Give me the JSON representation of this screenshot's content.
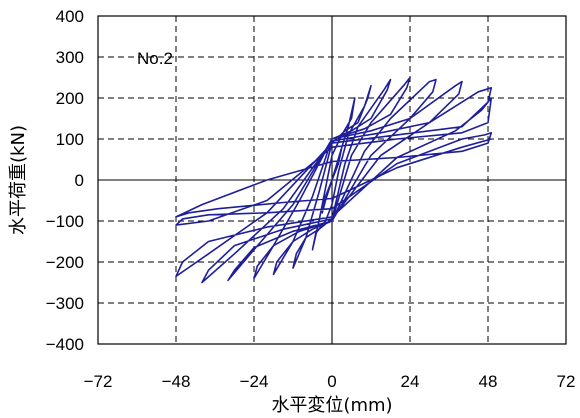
{
  "chart_data": {
    "type": "line",
    "title": "",
    "annotation": "No.2",
    "xlabel": "水平変位(mm)",
    "ylabel": "水平荷重(kN)",
    "xlim": [
      -72,
      72
    ],
    "ylim": [
      -400,
      400
    ],
    "x_ticks": [
      -72,
      -48,
      -24,
      0,
      24,
      48,
      72
    ],
    "x_tick_labels": [
      "−72",
      "−48",
      "−24",
      "0",
      "24",
      "48",
      "72"
    ],
    "y_ticks": [
      400,
      300,
      200,
      100,
      0,
      -100,
      -200,
      -300,
      -400
    ],
    "y_tick_labels": [
      "400",
      "300",
      "200",
      "100",
      "0",
      "−100",
      "−200",
      "−300",
      "−400"
    ],
    "grid": "dashed",
    "legend": "none",
    "line_color": "#1f1f99",
    "series": [
      {
        "values": [
          [
            0,
            0
          ],
          [
            2,
            50
          ],
          [
            3,
            80
          ],
          [
            2,
            40
          ],
          [
            0,
            0
          ],
          [
            -2,
            -50
          ],
          [
            -3,
            -80
          ],
          [
            -2,
            -40
          ],
          [
            0,
            0
          ],
          [
            3,
            80
          ],
          [
            5,
            130
          ],
          [
            7,
            200
          ],
          [
            6,
            150
          ],
          [
            3,
            110
          ],
          [
            0,
            60
          ],
          [
            -2,
            -20
          ],
          [
            -4,
            -100
          ],
          [
            -6,
            -170
          ],
          [
            -5,
            -130
          ],
          [
            -2,
            -100
          ],
          [
            0,
            -60
          ],
          [
            2,
            20
          ],
          [
            5,
            110
          ],
          [
            10,
            180
          ],
          [
            12,
            230
          ],
          [
            11,
            200
          ],
          [
            8,
            140
          ],
          [
            4,
            120
          ],
          [
            0,
            90
          ],
          [
            -4,
            -30
          ],
          [
            -8,
            -140
          ],
          [
            -12,
            -215
          ],
          [
            -11,
            -180
          ],
          [
            -8,
            -140
          ],
          [
            -4,
            -120
          ],
          [
            0,
            -95
          ],
          [
            4,
            40
          ],
          [
            8,
            130
          ],
          [
            16,
            220
          ],
          [
            18,
            245
          ],
          [
            17,
            220
          ],
          [
            12,
            150
          ],
          [
            6,
            120
          ],
          [
            0,
            100
          ],
          [
            -6,
            -40
          ],
          [
            -12,
            -150
          ],
          [
            -18,
            -230
          ],
          [
            -17,
            -200
          ],
          [
            -12,
            -150
          ],
          [
            -6,
            -120
          ],
          [
            0,
            -100
          ],
          [
            6,
            60
          ],
          [
            12,
            140
          ],
          [
            22,
            230
          ],
          [
            24,
            250
          ],
          [
            23,
            225
          ],
          [
            18,
            160
          ],
          [
            10,
            125
          ],
          [
            0,
            100
          ],
          [
            -10,
            -50
          ],
          [
            -18,
            -160
          ],
          [
            -24,
            -240
          ],
          [
            -23,
            -210
          ],
          [
            -18,
            -160
          ],
          [
            -10,
            -125
          ],
          [
            0,
            -100
          ],
          [
            10,
            70
          ],
          [
            18,
            150
          ],
          [
            30,
            240
          ],
          [
            32,
            245
          ],
          [
            31,
            215
          ],
          [
            24,
            150
          ],
          [
            12,
            120
          ],
          [
            0,
            100
          ],
          [
            -12,
            -60
          ],
          [
            -24,
            -170
          ],
          [
            -32,
            -245
          ],
          [
            -30,
            -220
          ],
          [
            -24,
            -165
          ],
          [
            -12,
            -125
          ],
          [
            0,
            -100
          ],
          [
            12,
            60
          ],
          [
            24,
            150
          ],
          [
            38,
            230
          ],
          [
            40,
            240
          ],
          [
            39,
            210
          ],
          [
            30,
            140
          ],
          [
            15,
            115
          ],
          [
            0,
            95
          ],
          [
            -15,
            -70
          ],
          [
            -30,
            -180
          ],
          [
            -40,
            -250
          ],
          [
            -38,
            -220
          ],
          [
            -30,
            -160
          ],
          [
            -15,
            -120
          ],
          [
            0,
            -95
          ],
          [
            15,
            60
          ],
          [
            30,
            140
          ],
          [
            45,
            215
          ],
          [
            49,
            225
          ],
          [
            48,
            190
          ],
          [
            40,
            130
          ],
          [
            20,
            110
          ],
          [
            0,
            90
          ],
          [
            -20,
            -80
          ],
          [
            -38,
            -180
          ],
          [
            -48,
            -235
          ],
          [
            -46,
            -200
          ],
          [
            -38,
            -150
          ],
          [
            -20,
            -115
          ],
          [
            0,
            -90
          ],
          [
            20,
            55
          ],
          [
            38,
            120
          ],
          [
            46,
            170
          ],
          [
            49,
            200
          ],
          [
            48,
            140
          ],
          [
            40,
            115
          ],
          [
            20,
            100
          ],
          [
            0,
            80
          ],
          [
            -20,
            -50
          ],
          [
            -38,
            -100
          ],
          [
            -48,
            -110
          ],
          [
            -46,
            -95
          ],
          [
            -38,
            -85
          ],
          [
            -20,
            -80
          ],
          [
            0,
            -70
          ],
          [
            20,
            40
          ],
          [
            40,
            100
          ],
          [
            47,
            110
          ],
          [
            49,
            115
          ],
          [
            48,
            90
          ],
          [
            40,
            70
          ],
          [
            20,
            55
          ],
          [
            0,
            45
          ],
          [
            -20,
            0
          ],
          [
            -40,
            -60
          ],
          [
            -48,
            -90
          ],
          [
            -44,
            -80
          ],
          [
            -35,
            -70
          ],
          [
            -15,
            -55
          ],
          [
            0,
            -45
          ],
          [
            20,
            30
          ],
          [
            40,
            80
          ],
          [
            49,
            100
          ]
        ]
      }
    ]
  }
}
